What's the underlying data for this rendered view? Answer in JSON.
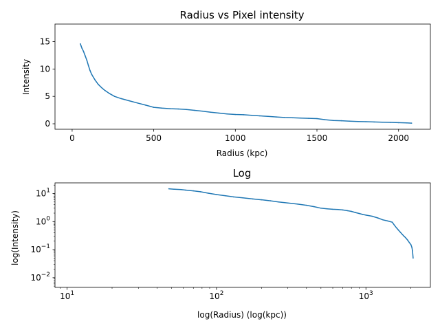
{
  "colors": {
    "series": "#1f77b4",
    "axes": "#000000",
    "background": "#ffffff"
  },
  "chart_data": [
    {
      "type": "line",
      "title": "Radius vs Pixel intensity",
      "xlabel": "Radius (kpc)",
      "ylabel": "Intensity",
      "xscale": "linear",
      "yscale": "linear",
      "xlim": [
        -105,
        2195
      ],
      "ylim": [
        -1.0,
        18.2
      ],
      "xticks": [
        0,
        500,
        1000,
        1500,
        2000
      ],
      "xtick_labels": [
        "0",
        "500",
        "1000",
        "1500",
        "2000"
      ],
      "yticks": [
        0,
        5,
        10,
        15
      ],
      "ytick_labels": [
        "0",
        "5",
        "10",
        "15"
      ],
      "grid": false,
      "legend": "none",
      "series": [
        {
          "x": [
            50,
            55,
            60,
            70,
            80,
            90,
            100,
            110,
            120,
            140,
            160,
            180,
            200,
            230,
            260,
            300,
            350,
            400,
            450,
            500,
            550,
            600,
            650,
            700,
            750,
            800,
            850,
            900,
            950,
            1000,
            1050,
            1100,
            1150,
            1200,
            1250,
            1300,
            1350,
            1400,
            1450,
            1500,
            1550,
            1600,
            1650,
            1700,
            1750,
            1800,
            1850,
            1900,
            1950,
            2000,
            2050,
            2080
          ],
          "y": [
            14.6,
            14.2,
            13.8,
            13.2,
            12.4,
            11.6,
            10.6,
            9.7,
            9.0,
            8.0,
            7.2,
            6.6,
            6.1,
            5.5,
            5.0,
            4.6,
            4.2,
            3.8,
            3.4,
            3.0,
            2.85,
            2.75,
            2.7,
            2.6,
            2.45,
            2.3,
            2.1,
            1.95,
            1.8,
            1.7,
            1.65,
            1.55,
            1.45,
            1.35,
            1.25,
            1.15,
            1.1,
            1.05,
            1.0,
            0.95,
            0.75,
            0.6,
            0.55,
            0.48,
            0.42,
            0.38,
            0.33,
            0.28,
            0.25,
            0.2,
            0.15,
            0.12
          ]
        }
      ]
    },
    {
      "type": "line",
      "title": "Log",
      "xlabel": "log(Radius) (log(kpc))",
      "ylabel": "log(Intensity)",
      "xscale": "log",
      "yscale": "log",
      "xlim": [
        8.3,
        2700
      ],
      "ylim": [
        0.0045,
        24
      ],
      "xticks": [
        10,
        100,
        1000
      ],
      "xtick_labels": [
        "10",
        "10",
        "10"
      ],
      "xtick_exponents": [
        "1",
        "2",
        "3"
      ],
      "yticks": [
        0.01,
        0.1,
        1,
        10
      ],
      "ytick_labels": [
        "10",
        "10",
        "10",
        "10"
      ],
      "ytick_exponents": [
        "−2",
        "−1",
        "0",
        "1"
      ],
      "grid": false,
      "legend": "none",
      "series": [
        {
          "x": [
            48,
            52,
            58,
            62,
            70,
            78,
            88,
            100,
            115,
            130,
            150,
            175,
            200,
            230,
            260,
            300,
            350,
            400,
            450,
            500,
            550,
            600,
            650,
            700,
            750,
            800,
            850,
            900,
            950,
            1000,
            1100,
            1200,
            1300,
            1400,
            1450,
            1500,
            1550,
            1600,
            1650,
            1700,
            1750,
            1800,
            1850,
            1900,
            1950,
            2000,
            2030,
            2050,
            2070
          ],
          "y": [
            14.8,
            14.3,
            13.8,
            13.3,
            12.5,
            11.6,
            10.3,
            9.2,
            8.3,
            7.6,
            7.0,
            6.4,
            6.0,
            5.5,
            5.0,
            4.6,
            4.2,
            3.8,
            3.4,
            3.0,
            2.85,
            2.75,
            2.7,
            2.6,
            2.45,
            2.3,
            2.1,
            1.95,
            1.8,
            1.7,
            1.55,
            1.35,
            1.15,
            1.05,
            1.0,
            0.95,
            0.75,
            0.6,
            0.5,
            0.42,
            0.35,
            0.3,
            0.26,
            0.22,
            0.18,
            0.15,
            0.12,
            0.09,
            0.05
          ]
        }
      ]
    }
  ]
}
